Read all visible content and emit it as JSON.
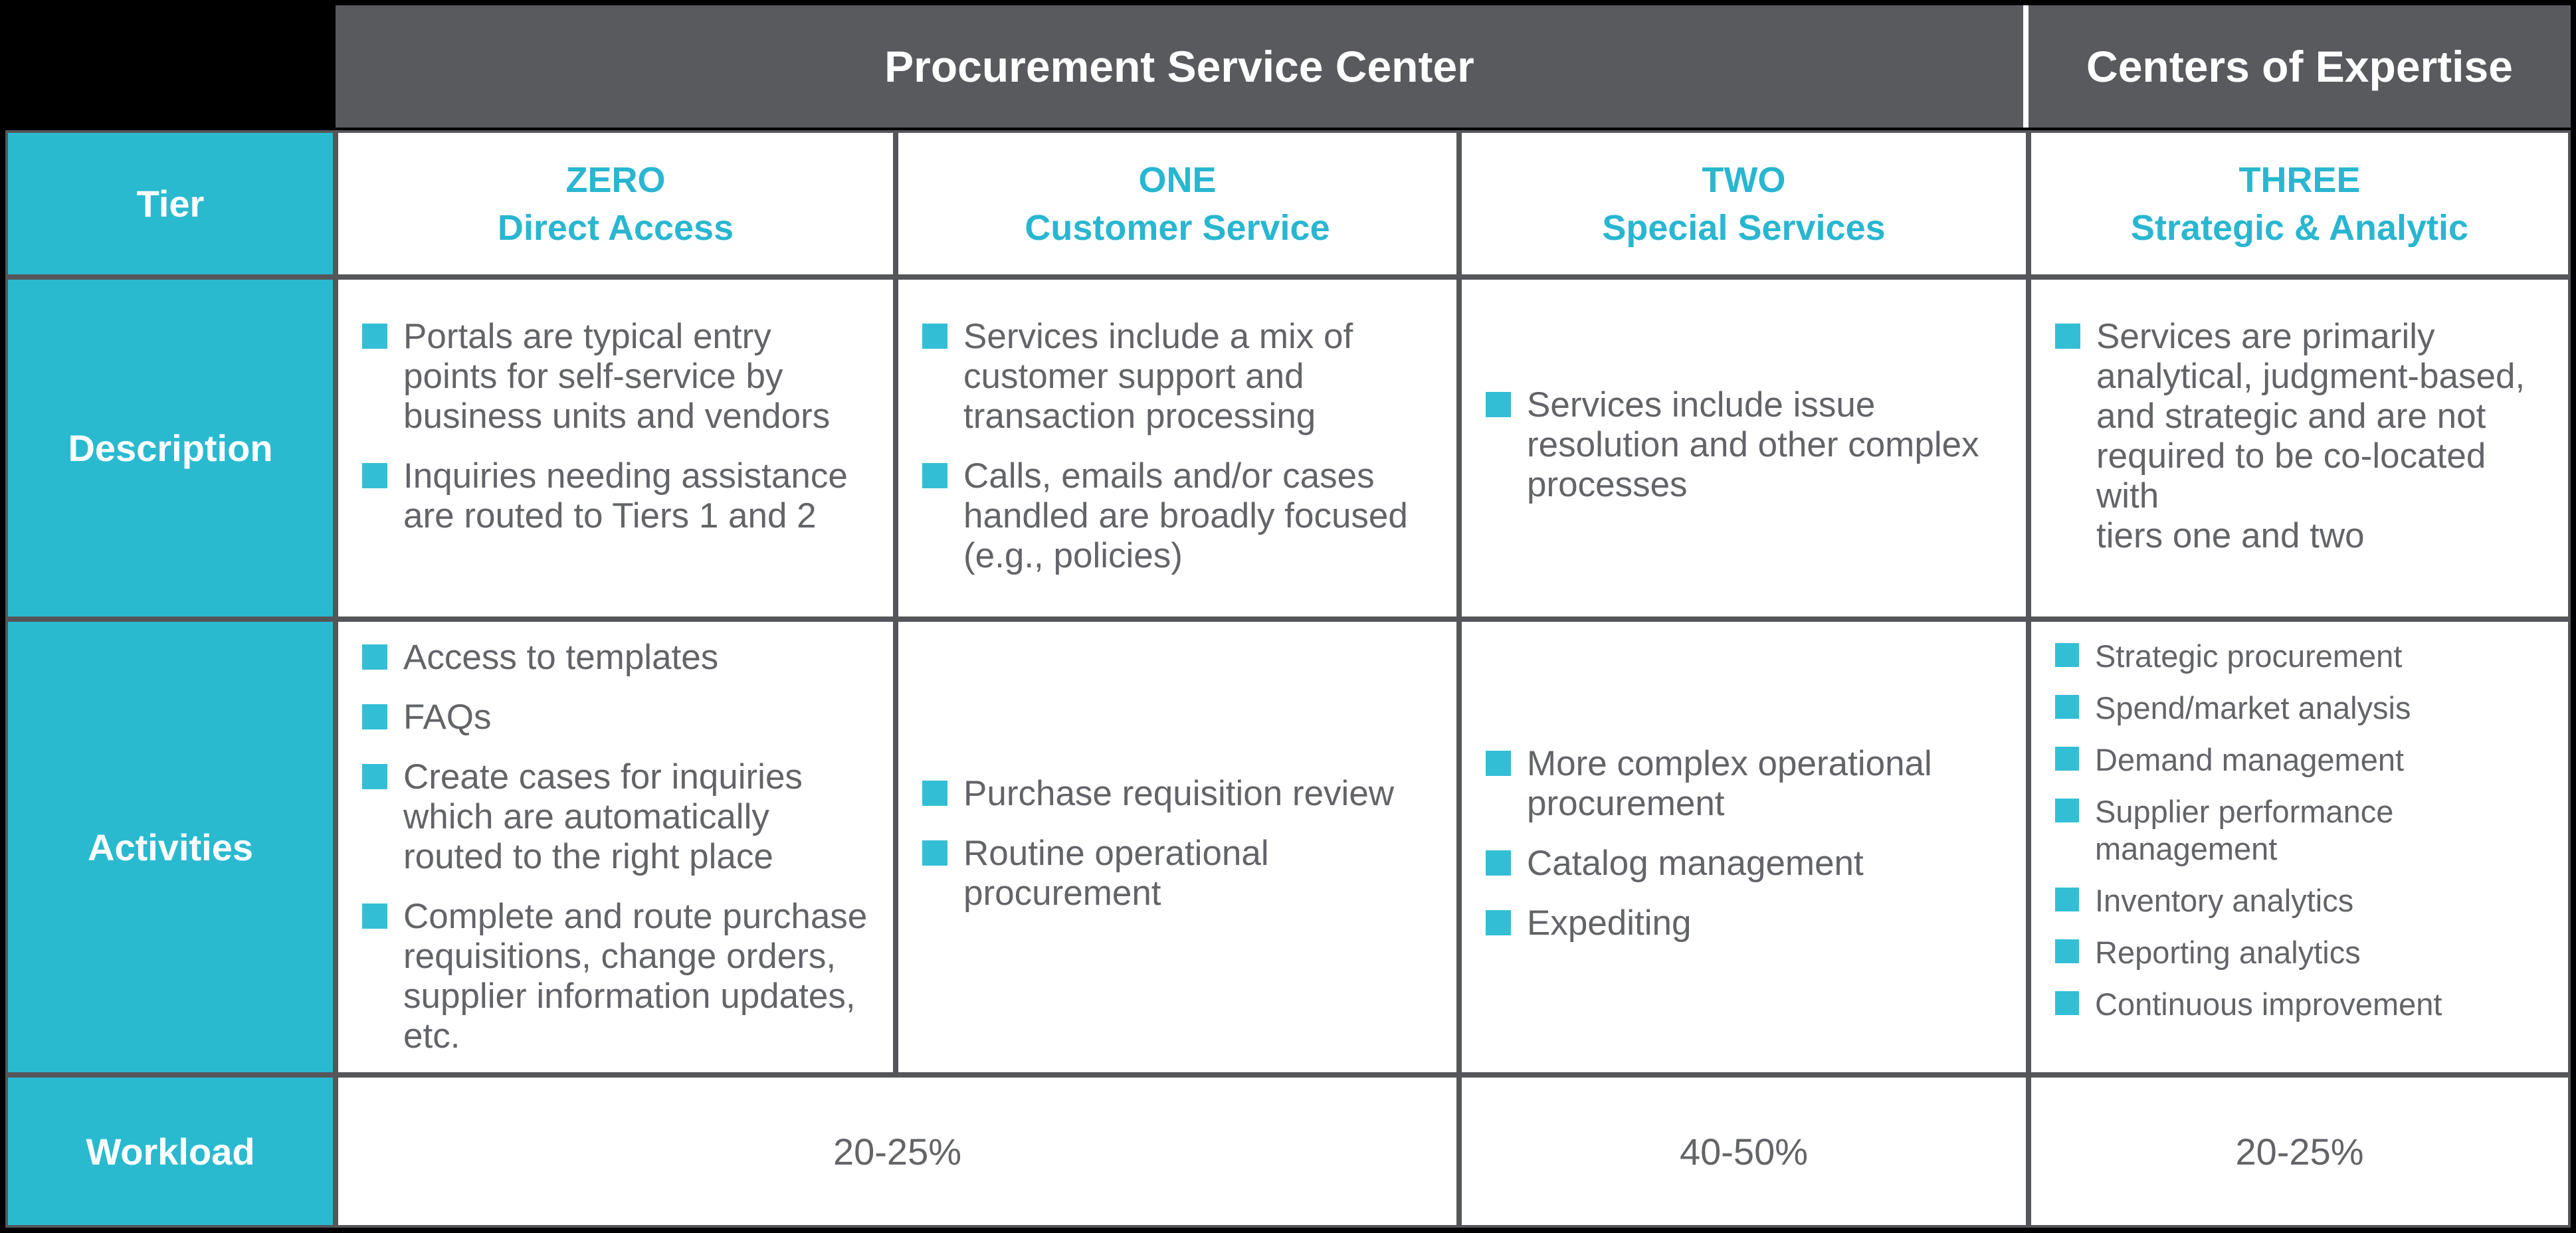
{
  "header": {
    "psc_title": "Procurement Service Center",
    "coe_title": "Centers of Expertise"
  },
  "rows": {
    "tier_label": "Tier",
    "description_label": "Description",
    "activities_label": "Activities",
    "workload_label": "Workload"
  },
  "tiers": [
    {
      "number": "ZERO",
      "name": "Direct Access",
      "description": [
        "Portals are typical entry\npoints for self-service by\nbusiness units and vendors",
        "Inquiries needing assistance\nare routed to Tiers 1 and 2"
      ],
      "activities": [
        "Access to templates",
        "FAQs",
        "Create cases for inquiries\nwhich are automatically\nrouted to the right place",
        "Complete and route purchase\nrequisitions, change orders,\nsupplier information updates,\netc."
      ]
    },
    {
      "number": "ONE",
      "name": "Customer Service",
      "description": [
        "Services include a mix of\ncustomer support and\ntransaction processing",
        "Calls, emails and/or cases\nhandled are broadly focused\n(e.g., policies)"
      ],
      "activities": [
        "Purchase requisition review",
        "Routine operational\nprocurement"
      ]
    },
    {
      "number": "TWO",
      "name": "Special Services",
      "description": [
        "Services include issue\nresolution and other complex\nprocesses"
      ],
      "activities": [
        "More complex operational\nprocurement",
        "Catalog management",
        "Expediting"
      ]
    },
    {
      "number": "THREE",
      "name": "Strategic & Analytic",
      "description": [
        "Services are primarily\nanalytical, judgment-based,\nand strategic and are not\nrequired to be co-located with\ntiers one and two"
      ],
      "activities": [
        "Strategic procurement",
        "Spend/market analysis",
        "Demand management",
        "Supplier performance\nmanagement",
        "Inventory analytics",
        "Reporting analytics",
        "Continuous improvement"
      ]
    }
  ],
  "workload": {
    "tier0_1": "20-25%",
    "tier2": "40-50%",
    "tier3": "20-25%"
  },
  "colors": {
    "accent_cyan": "#2ABAD0",
    "bullet_cyan": "#32BFD6",
    "header_gray": "#595A5E",
    "border_gray": "#55565A",
    "body_text": "#626468",
    "background": "#000000"
  }
}
